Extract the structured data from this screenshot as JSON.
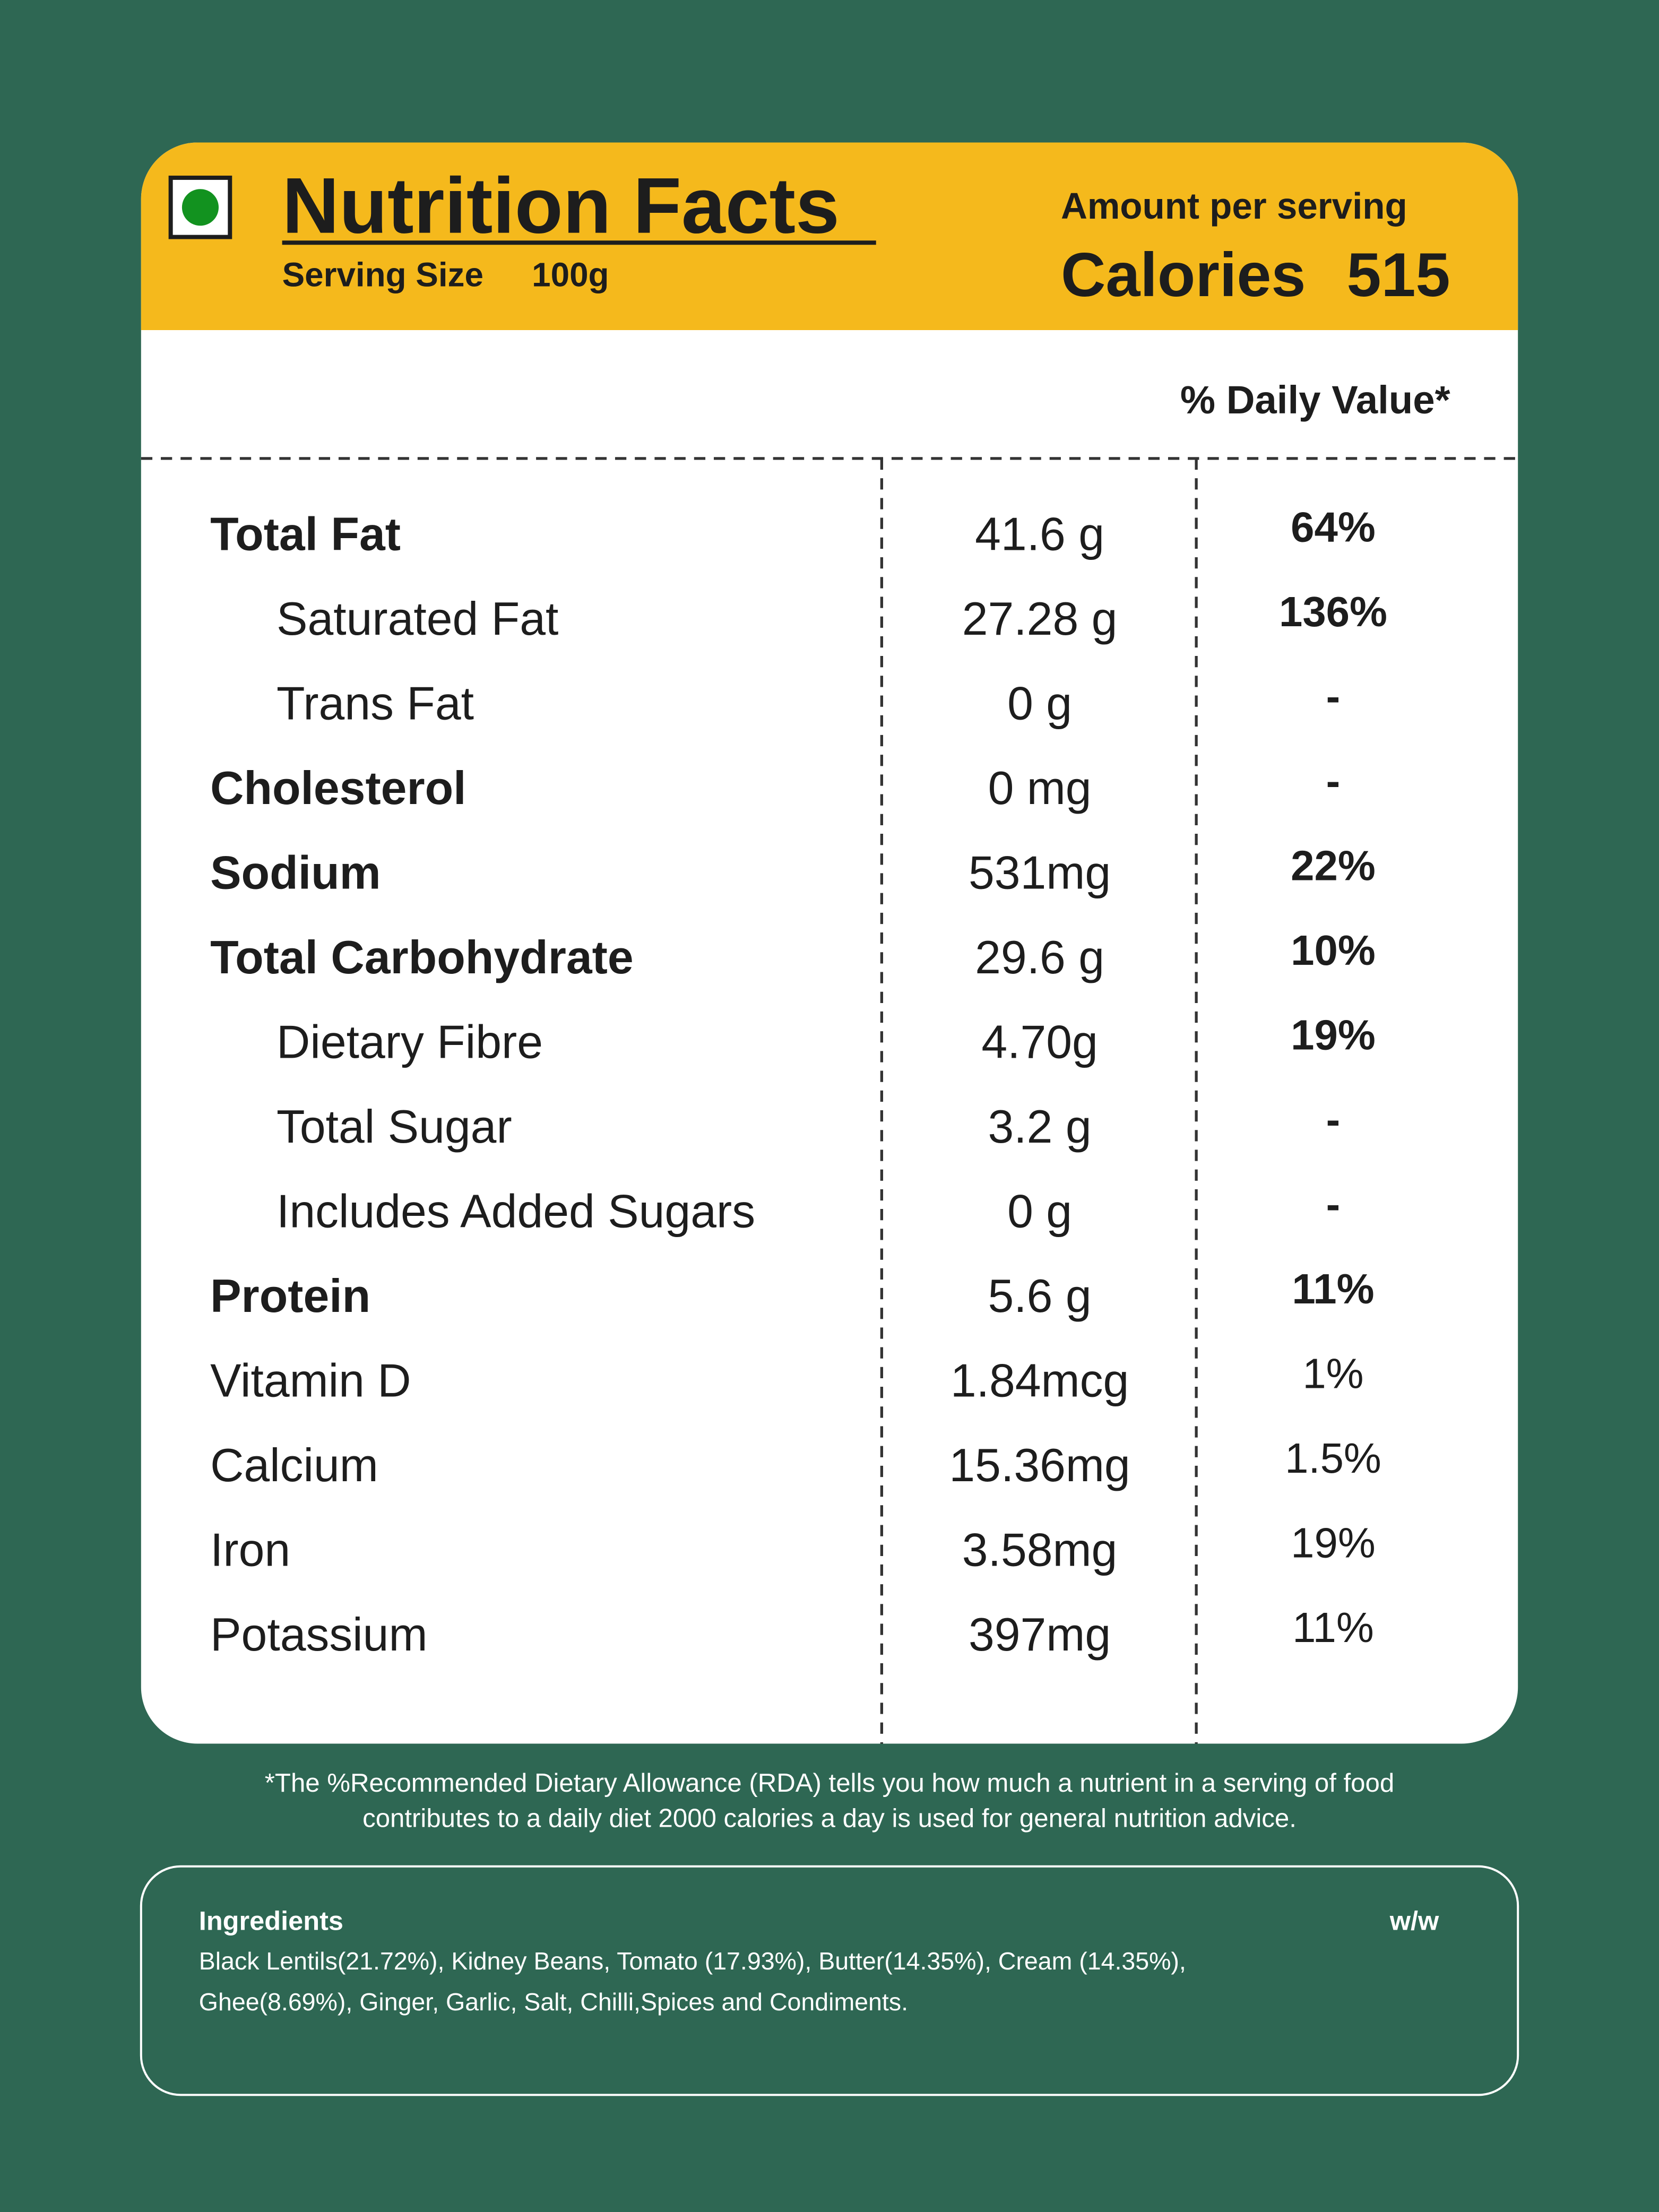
{
  "header": {
    "title": "Nutrition Facts",
    "serving_size_label": "Serving Size",
    "serving_size": "100g",
    "amount_per_serving": "Amount per serving",
    "calories_label": "Calories",
    "calories": "515"
  },
  "daily_value_heading": "% Daily Value*",
  "rows": [
    {
      "nutrient": "Total Fat",
      "amount": "41.6 g",
      "daily_value": "64%"
    },
    {
      "nutrient": "Saturated Fat",
      "amount": "27.28 g",
      "daily_value": "136%"
    },
    {
      "nutrient": "Trans Fat",
      "amount": "0 g",
      "daily_value": "-"
    },
    {
      "nutrient": "Cholesterol",
      "amount": "0 mg",
      "daily_value": "-"
    },
    {
      "nutrient": "Sodium",
      "amount": "531mg",
      "daily_value": "22%"
    },
    {
      "nutrient": "Total Carbohydrate",
      "amount": "29.6 g",
      "daily_value": "10%"
    },
    {
      "nutrient": "Dietary Fibre",
      "amount": "4.70g",
      "daily_value": "19%"
    },
    {
      "nutrient": "Total Sugar",
      "amount": "3.2 g",
      "daily_value": "-"
    },
    {
      "nutrient": "Includes Added Sugars",
      "amount": "0 g",
      "daily_value": "-"
    },
    {
      "nutrient": "Protein",
      "amount": "5.6 g",
      "daily_value": "11%"
    },
    {
      "nutrient": "Vitamin D",
      "amount": "1.84mcg",
      "daily_value": "1%"
    },
    {
      "nutrient": "Calcium",
      "amount": "15.36mg",
      "daily_value": "1.5%"
    },
    {
      "nutrient": "Iron",
      "amount": "3.58mg",
      "daily_value": "19%"
    },
    {
      "nutrient": "Potassium",
      "amount": "397mg",
      "daily_value": "11%"
    }
  ],
  "footnote": [
    "*The %Recommended Dietary Allowance (RDA) tells you how much a nutrient in a serving of food",
    "contributes to a daily diet 2000 calories a day is used for general nutrition advice."
  ],
  "ingredients": {
    "title": "Ingredients",
    "unit": "w/w",
    "lines": [
      "Black Lentils(21.72%), Kidney Beans, Tomato (17.93%), Butter(14.35%), Cream (14.35%),",
      "Ghee(8.69%), Ginger, Garlic, Salt, Chilli,Spices and Condiments."
    ]
  }
}
